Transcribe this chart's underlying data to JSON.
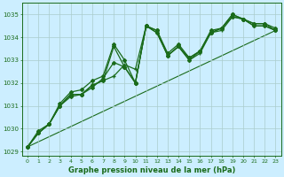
{
  "title": "Graphe pression niveau de la mer (hPa)",
  "bg_color": "#cceeff",
  "grid_color": "#aacccc",
  "line_color": "#1a6b1a",
  "xlim": [
    -0.5,
    23.5
  ],
  "ylim": [
    1028.8,
    1035.5
  ],
  "yticks": [
    1029,
    1030,
    1031,
    1032,
    1033,
    1034,
    1035
  ],
  "xticks": [
    0,
    1,
    2,
    3,
    4,
    5,
    6,
    7,
    8,
    9,
    10,
    11,
    12,
    13,
    14,
    15,
    16,
    17,
    18,
    19,
    20,
    21,
    22,
    23
  ],
  "series": [
    {
      "y": [
        1029.2,
        1029.8,
        1030.2,
        1031.0,
        1031.5,
        1031.5,
        1031.8,
        1032.2,
        1032.9,
        1032.7,
        1032.0,
        1034.5,
        1034.3,
        1033.2,
        1033.6,
        1033.1,
        1033.4,
        1034.2,
        1034.4,
        1035.0,
        1034.8,
        1034.6,
        1034.6,
        1034.3
      ],
      "lw": 0.9,
      "marker": "D",
      "ms": 2.0,
      "zorder": 2
    },
    {
      "y": [
        1029.2,
        1029.9,
        1030.2,
        1031.1,
        1031.6,
        1031.7,
        1032.1,
        1032.3,
        1033.7,
        1033.0,
        1032.0,
        1034.5,
        1034.3,
        1033.3,
        1033.7,
        1033.1,
        1033.4,
        1034.2,
        1034.4,
        1035.0,
        1034.8,
        1034.6,
        1034.6,
        1034.4
      ],
      "lw": 0.9,
      "marker": "D",
      "ms": 2.0,
      "zorder": 2
    },
    {
      "y": [
        1029.2,
        1029.8,
        1030.2,
        1031.0,
        1031.4,
        1031.5,
        1031.9,
        1032.1,
        1033.6,
        1032.7,
        1032.0,
        1034.5,
        1034.2,
        1033.2,
        1033.6,
        1033.0,
        1033.4,
        1034.3,
        1034.4,
        1034.9,
        1034.8,
        1034.5,
        1034.5,
        1034.3
      ],
      "lw": 0.9,
      "marker": "D",
      "ms": 2.0,
      "zorder": 2
    },
    {
      "y": [
        1029.2,
        1029.8,
        1030.2,
        1031.0,
        1031.5,
        1031.5,
        1031.9,
        1032.1,
        1032.3,
        1032.8,
        1032.6,
        1034.5,
        1034.2,
        1033.2,
        1033.6,
        1033.0,
        1033.3,
        1034.2,
        1034.3,
        1034.9,
        1034.8,
        1034.5,
        1034.5,
        1034.3
      ],
      "lw": 0.9,
      "marker": "+",
      "ms": 3.5,
      "zorder": 3
    }
  ],
  "linear_line": {
    "x": [
      0,
      23
    ],
    "y": [
      1029.2,
      1034.3
    ],
    "lw": 0.8,
    "zorder": 1
  }
}
